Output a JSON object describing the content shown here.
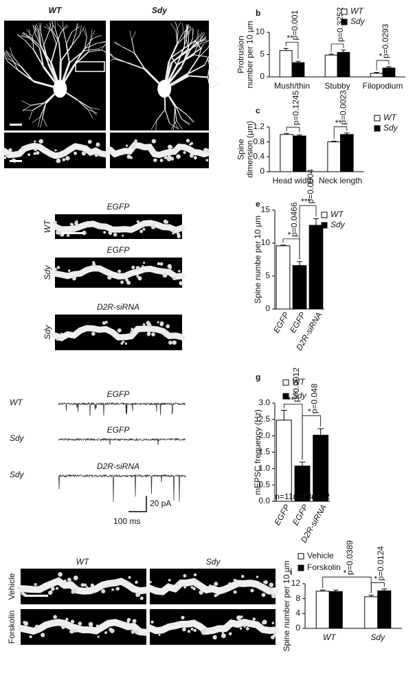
{
  "chart_data": [
    {
      "type": "bar",
      "panel_letter": "b",
      "ylabel": [
        "Protrusion",
        "number per 10 µm"
      ],
      "categories": [
        "Mush/thin",
        "Stubby",
        "Filopodium"
      ],
      "series": [
        {
          "name": "WT",
          "color": "#ffffff",
          "values": [
            5.9,
            4.9,
            0.8
          ],
          "errors": [
            0.5,
            0.2,
            0.2
          ]
        },
        {
          "name": "Sdy",
          "color": "#000000",
          "values": [
            3.2,
            5.5,
            2.0
          ],
          "errors": [
            0.3,
            0.5,
            0.3
          ]
        }
      ],
      "comparisons": [
        {
          "stars": "**",
          "p": "p=0.001"
        },
        {
          "stars": "",
          "p": "p=0.3252"
        },
        {
          "stars": "*",
          "p": "p=0.0293"
        }
      ],
      "ylim": [
        0,
        10
      ],
      "yticks": [
        0,
        5,
        10
      ]
    },
    {
      "type": "bar",
      "panel_letter": "c",
      "ylabel": [
        "Spine",
        "dimension (µm)"
      ],
      "categories": [
        "Head width",
        "Neck length"
      ],
      "series": [
        {
          "name": "WT",
          "color": "#ffffff",
          "values": [
            1.0,
            0.8
          ],
          "errors": [
            0.03,
            0.02
          ]
        },
        {
          "name": "Sdy",
          "color": "#000000",
          "values": [
            0.96,
            1.0
          ],
          "errors": [
            0.03,
            0.04
          ]
        }
      ],
      "comparisons": [
        {
          "stars": "",
          "p": "p=0.1245"
        },
        {
          "stars": "**",
          "p": "p=0.0023"
        }
      ],
      "ylim": [
        0,
        1.2
      ],
      "yticks": [
        0,
        0.4,
        0.8,
        1.2
      ]
    },
    {
      "type": "bar",
      "panel_letter": "e",
      "ylabel": [
        "Spine numbe per 10 µm"
      ],
      "categories": [
        "EGFP",
        "EGFP",
        "D2R-siRNA"
      ],
      "values": [
        9.6,
        6.6,
        12.7
      ],
      "errors": [
        0.1,
        0.6,
        1.0
      ],
      "bar_colors": [
        "#ffffff",
        "#000000",
        "#000000"
      ],
      "legend": [
        {
          "label": "WT",
          "color": "#ffffff"
        },
        {
          "label": "Sdy",
          "color": "#000000"
        }
      ],
      "comparisons": [
        {
          "stars": "*",
          "p": "p=0.0466"
        },
        {
          "stars": "***",
          "p": "p=0.0004"
        }
      ],
      "ylim": [
        0,
        15
      ],
      "yticks": [
        0,
        5,
        10,
        15
      ]
    },
    {
      "type": "bar",
      "panel_letter": "g",
      "ylabel": [
        "mEPSC frequency (Hz)"
      ],
      "categories": [
        "EGFP",
        "EGFP",
        "D2R-siRNA"
      ],
      "values": [
        2.48,
        1.08,
        2.02
      ],
      "errors": [
        0.3,
        0.12,
        0.2
      ],
      "bar_colors": [
        "#ffffff",
        "#000000",
        "#000000"
      ],
      "n_labels": [
        "n=11",
        "n=13",
        "n=12"
      ],
      "legend": [
        {
          "label": "WT",
          "color": "#ffffff"
        },
        {
          "label": "Sdy",
          "color": "#000000"
        }
      ],
      "comparisons": [
        {
          "stars": "**",
          "p": "p=0.0012"
        },
        {
          "stars": "*",
          "p": "p=0.048"
        }
      ],
      "ylim": [
        0,
        3.0
      ],
      "yticks": [
        {
          "value": 0,
          "label": "0.0"
        },
        0.5,
        {
          "value": 1,
          "label": "1.0"
        },
        1.5,
        {
          "value": 2,
          "label": "2.0"
        },
        2.5,
        {
          "value": 3,
          "label": "3.0"
        }
      ]
    },
    {
      "type": "bar",
      "panel_letter": "i",
      "ylabel": [
        "Spine number per 10 µm"
      ],
      "categories": [
        "WT",
        "Sdy"
      ],
      "series": [
        {
          "name": "Vehicle",
          "color": "#ffffff",
          "values": [
            10.0,
            8.5
          ],
          "errors": [
            0.3,
            0.4
          ]
        },
        {
          "name": "Forskolin",
          "color": "#000000",
          "values": [
            9.9,
            10.1
          ],
          "errors": [
            0.4,
            0.5
          ]
        }
      ],
      "comparisons": [
        {
          "stars": "*",
          "p": "p=0.0389"
        },
        {
          "stars": "*",
          "p": "p=0.0124"
        }
      ],
      "ylim": [
        0,
        12
      ],
      "yticks": [
        0,
        4,
        8,
        12
      ]
    }
  ],
  "panels": {
    "a": {
      "columns": [
        "WT",
        "Sdy"
      ]
    },
    "d": {
      "rows": [
        {
          "condition": "EGFP",
          "genotype": "WT"
        },
        {
          "condition": "EGFP",
          "genotype": "Sdy"
        },
        {
          "condition": "D2R-siRNA",
          "genotype": "Sdy"
        }
      ]
    },
    "f": {
      "rows": [
        {
          "condition": "EGFP",
          "genotype": "WT"
        },
        {
          "condition": "EGFP",
          "genotype": "Sdy"
        },
        {
          "condition": "D2R-siRNA",
          "genotype": "Sdy"
        }
      ],
      "scale_y": "20 pA",
      "scale_x": "100 ms"
    },
    "h": {
      "columns": [
        "WT",
        "Sdy"
      ],
      "rows": [
        "Vehicle",
        "Forskolin"
      ]
    }
  }
}
